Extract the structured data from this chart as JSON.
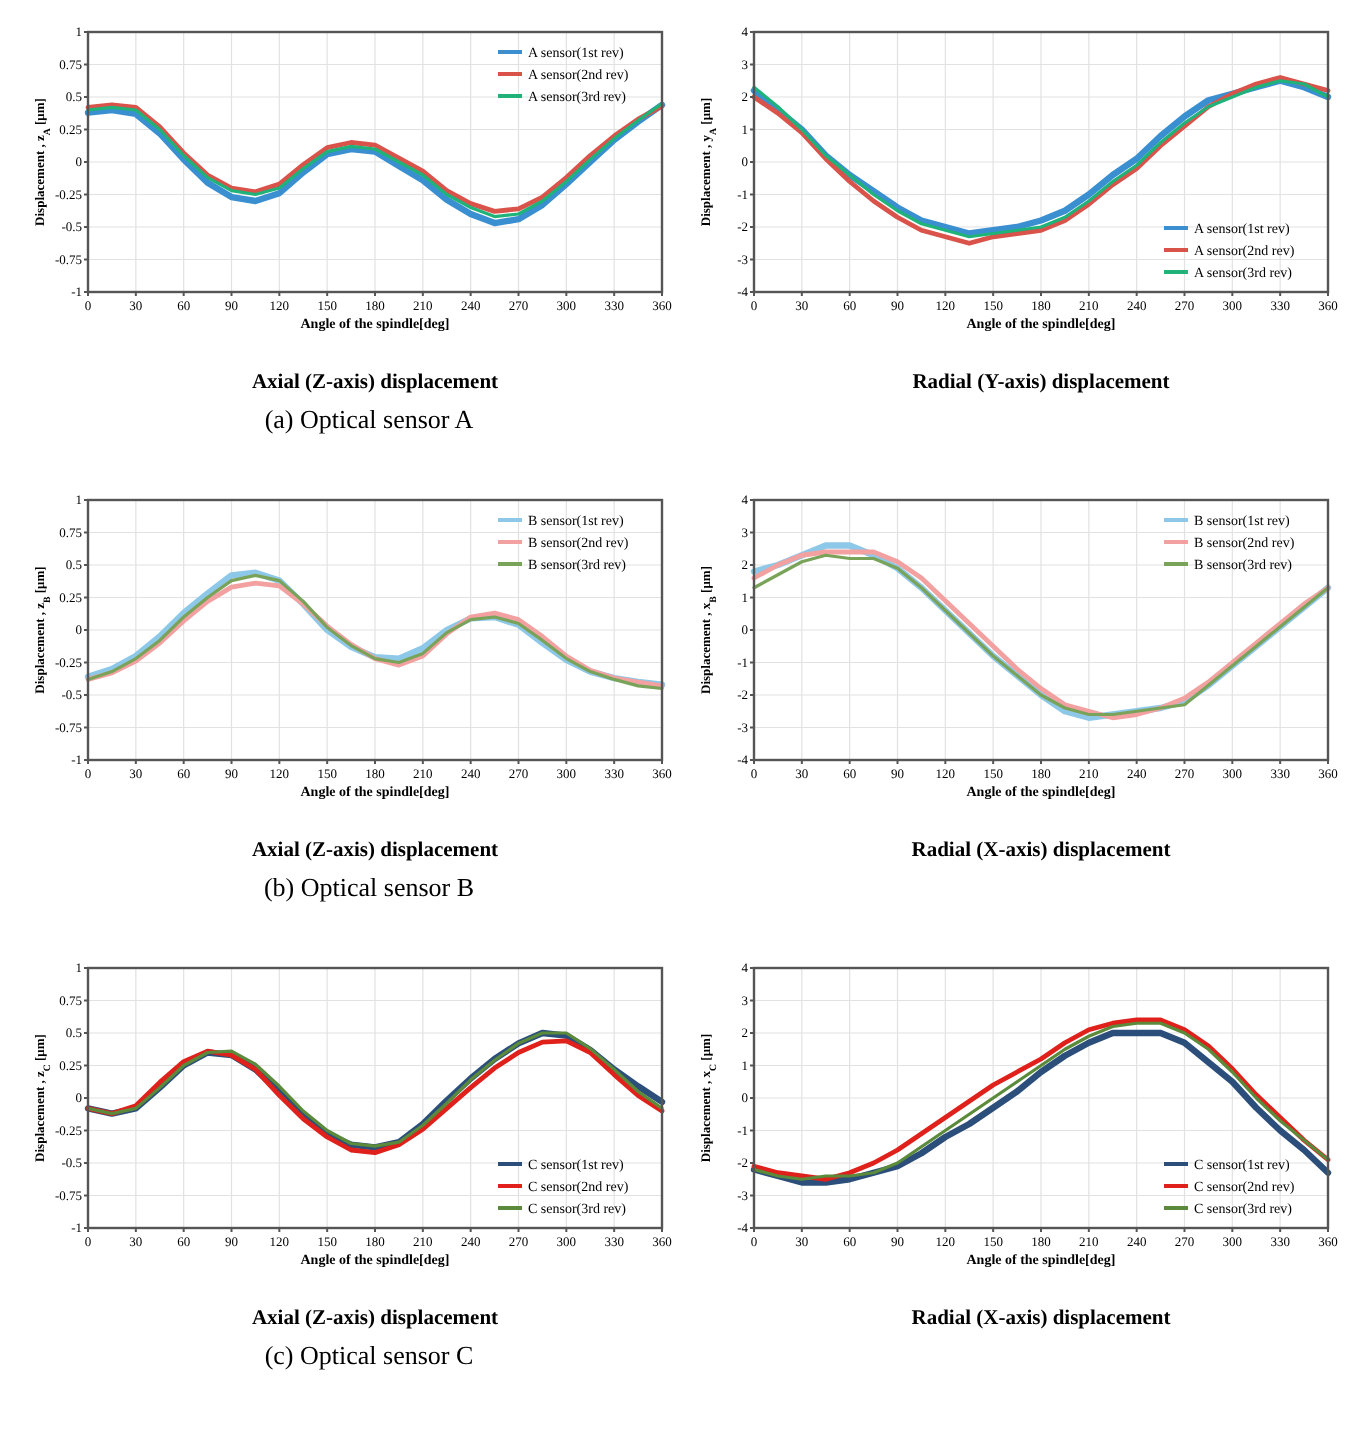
{
  "chart_data": [
    {
      "type": "line",
      "title": "Axial (Z-axis) displacement",
      "xlabel": "Angle of the spindle[deg]",
      "ylabel": "Displacement , z$_{A}$ [μm]",
      "xlim": [
        0,
        360
      ],
      "xticks": [
        0,
        30,
        60,
        90,
        120,
        150,
        180,
        210,
        240,
        270,
        300,
        330,
        360
      ],
      "ylim": [
        -1,
        1
      ],
      "yticks": [
        -1,
        -0.75,
        -0.5,
        -0.25,
        0,
        0.25,
        0.5,
        0.75,
        1
      ],
      "grid": true,
      "legend": "top right",
      "x": [
        0,
        15,
        30,
        45,
        60,
        75,
        90,
        105,
        120,
        135,
        150,
        165,
        180,
        195,
        210,
        225,
        240,
        255,
        270,
        285,
        300,
        315,
        330,
        345,
        360
      ],
      "series": [
        {
          "name": "A sensor(1st rev)",
          "color": "#3a8fd0",
          "values": [
            0.38,
            0.4,
            0.37,
            0.22,
            0.02,
            -0.16,
            -0.27,
            -0.3,
            -0.24,
            -0.08,
            0.06,
            0.1,
            0.08,
            -0.03,
            -0.14,
            -0.29,
            -0.4,
            -0.47,
            -0.44,
            -0.33,
            -0.17,
            0.0,
            0.17,
            0.31,
            0.44
          ]
        },
        {
          "name": "A sensor(2nd rev)",
          "color": "#d9534a",
          "values": [
            0.42,
            0.44,
            0.42,
            0.27,
            0.07,
            -0.1,
            -0.2,
            -0.23,
            -0.17,
            -0.02,
            0.11,
            0.15,
            0.13,
            0.03,
            -0.07,
            -0.22,
            -0.32,
            -0.38,
            -0.36,
            -0.27,
            -0.12,
            0.05,
            0.2,
            0.33,
            0.43
          ]
        },
        {
          "name": "A sensor(3rd rev)",
          "color": "#1fb37a",
          "values": [
            0.4,
            0.42,
            0.4,
            0.25,
            0.05,
            -0.12,
            -0.22,
            -0.25,
            -0.2,
            -0.05,
            0.08,
            0.12,
            0.1,
            0.0,
            -0.1,
            -0.25,
            -0.35,
            -0.42,
            -0.4,
            -0.3,
            -0.15,
            0.02,
            0.18,
            0.32,
            0.45
          ]
        }
      ]
    },
    {
      "type": "line",
      "title": "Radial (Y-axis) displacement",
      "xlabel": "Angle of the spindle[deg]",
      "ylabel": "Displacement , y$_{A}$ [μm]",
      "xlim": [
        0,
        360
      ],
      "xticks": [
        0,
        30,
        60,
        90,
        120,
        150,
        180,
        210,
        240,
        270,
        300,
        330,
        360
      ],
      "ylim": [
        -4,
        4
      ],
      "yticks": [
        -4,
        -3,
        -2,
        -1,
        0,
        1,
        2,
        3,
        4
      ],
      "grid": true,
      "legend": "bottom right",
      "annotations": [
        "(a) Optical sensor A"
      ],
      "x": [
        0,
        15,
        30,
        45,
        60,
        75,
        90,
        105,
        120,
        135,
        150,
        165,
        180,
        195,
        210,
        225,
        240,
        255,
        270,
        285,
        300,
        315,
        330,
        345,
        360
      ],
      "series": [
        {
          "name": "A sensor(1st rev)",
          "color": "#3a8fd0",
          "values": [
            2.2,
            1.6,
            1.0,
            0.2,
            -0.4,
            -0.9,
            -1.4,
            -1.8,
            -2.0,
            -2.2,
            -2.1,
            -2.0,
            -1.8,
            -1.5,
            -1.0,
            -0.4,
            0.1,
            0.8,
            1.4,
            1.9,
            2.1,
            2.3,
            2.5,
            2.3,
            2.0
          ]
        },
        {
          "name": "A sensor(2nd rev)",
          "color": "#d9534a",
          "values": [
            2.0,
            1.5,
            0.9,
            0.1,
            -0.6,
            -1.2,
            -1.7,
            -2.1,
            -2.3,
            -2.5,
            -2.3,
            -2.2,
            -2.1,
            -1.8,
            -1.3,
            -0.7,
            -0.2,
            0.5,
            1.1,
            1.7,
            2.1,
            2.4,
            2.6,
            2.4,
            2.2
          ]
        },
        {
          "name": "A sensor(3rd rev)",
          "color": "#1fb37a",
          "values": [
            2.3,
            1.7,
            1.0,
            0.2,
            -0.4,
            -1.0,
            -1.5,
            -1.9,
            -2.1,
            -2.3,
            -2.2,
            -2.1,
            -2.0,
            -1.7,
            -1.2,
            -0.6,
            -0.1,
            0.6,
            1.2,
            1.7,
            2.0,
            2.3,
            2.5,
            2.4,
            2.0
          ]
        }
      ]
    },
    {
      "type": "line",
      "title": "Axial (Z-axis) displacement",
      "xlabel": "Angle of the spindle[deg]",
      "ylabel": "Displacement , z$_{B}$ [μm]",
      "xlim": [
        0,
        360
      ],
      "xticks": [
        0,
        30,
        60,
        90,
        120,
        150,
        180,
        210,
        240,
        270,
        300,
        330,
        360
      ],
      "ylim": [
        -1,
        1
      ],
      "yticks": [
        -1,
        -0.75,
        -0.5,
        -0.25,
        0,
        0.25,
        0.5,
        0.75,
        1
      ],
      "grid": true,
      "legend": "top right",
      "x": [
        0,
        15,
        30,
        45,
        60,
        75,
        90,
        105,
        120,
        135,
        150,
        165,
        180,
        195,
        210,
        225,
        240,
        255,
        270,
        285,
        300,
        315,
        330,
        345,
        360
      ],
      "series": [
        {
          "name": "B sensor(1st rev)",
          "color": "#8ec8e8",
          "values": [
            -0.36,
            -0.3,
            -0.2,
            -0.05,
            0.13,
            0.28,
            0.42,
            0.44,
            0.38,
            0.2,
            0.0,
            -0.13,
            -0.21,
            -0.22,
            -0.14,
            0.0,
            0.09,
            0.1,
            0.04,
            -0.1,
            -0.23,
            -0.32,
            -0.37,
            -0.4,
            -0.42
          ]
        },
        {
          "name": "B sensor(2nd rev)",
          "color": "#f2a0a0",
          "values": [
            -0.38,
            -0.33,
            -0.24,
            -0.1,
            0.07,
            0.22,
            0.33,
            0.36,
            0.34,
            0.2,
            0.03,
            -0.11,
            -0.22,
            -0.27,
            -0.2,
            -0.03,
            0.1,
            0.13,
            0.08,
            -0.05,
            -0.2,
            -0.31,
            -0.37,
            -0.4,
            -0.43
          ]
        },
        {
          "name": "B sensor(3rd rev)",
          "color": "#7aa35a",
          "values": [
            -0.38,
            -0.32,
            -0.22,
            -0.08,
            0.1,
            0.25,
            0.38,
            0.42,
            0.38,
            0.22,
            0.02,
            -0.12,
            -0.22,
            -0.25,
            -0.18,
            -0.02,
            0.08,
            0.1,
            0.05,
            -0.08,
            -0.22,
            -0.32,
            -0.38,
            -0.43,
            -0.45
          ]
        }
      ]
    },
    {
      "type": "line",
      "title": "Radial (X-axis) displacement",
      "xlabel": "Angle of the spindle[deg]",
      "ylabel": "Displacement , x$_{B}$ [μm]",
      "xlim": [
        0,
        360
      ],
      "xticks": [
        0,
        30,
        60,
        90,
        120,
        150,
        180,
        210,
        240,
        270,
        300,
        330,
        360
      ],
      "ylim": [
        -4,
        4
      ],
      "yticks": [
        -4,
        -3,
        -2,
        -1,
        0,
        1,
        2,
        3,
        4
      ],
      "grid": true,
      "legend": "top right",
      "annotations": [
        "(b) Optical sensor B"
      ],
      "x": [
        0,
        15,
        30,
        45,
        60,
        75,
        90,
        105,
        120,
        135,
        150,
        165,
        180,
        195,
        210,
        225,
        240,
        255,
        270,
        285,
        300,
        315,
        330,
        345,
        360
      ],
      "series": [
        {
          "name": "B sensor(1st rev)",
          "color": "#8ec8e8",
          "values": [
            1.8,
            2.0,
            2.3,
            2.6,
            2.6,
            2.3,
            1.9,
            1.3,
            0.6,
            -0.1,
            -0.8,
            -1.4,
            -2.0,
            -2.5,
            -2.7,
            -2.6,
            -2.5,
            -2.4,
            -2.2,
            -1.7,
            -1.1,
            -0.5,
            0.1,
            0.7,
            1.3
          ]
        },
        {
          "name": "B sensor(2nd rev)",
          "color": "#f2a0a0",
          "values": [
            1.6,
            2.0,
            2.3,
            2.4,
            2.4,
            2.4,
            2.1,
            1.6,
            0.9,
            0.2,
            -0.5,
            -1.2,
            -1.8,
            -2.3,
            -2.5,
            -2.7,
            -2.6,
            -2.4,
            -2.1,
            -1.6,
            -1.0,
            -0.4,
            0.2,
            0.8,
            1.3
          ]
        },
        {
          "name": "B sensor(3rd rev)",
          "color": "#7aa35a",
          "values": [
            1.3,
            1.7,
            2.1,
            2.3,
            2.2,
            2.2,
            1.9,
            1.3,
            0.6,
            -0.1,
            -0.8,
            -1.4,
            -2.0,
            -2.4,
            -2.6,
            -2.6,
            -2.5,
            -2.4,
            -2.3,
            -1.7,
            -1.1,
            -0.5,
            0.1,
            0.7,
            1.3
          ]
        }
      ]
    },
    {
      "type": "line",
      "title": "Axial (Z-axis) displacement",
      "xlabel": "Angle of the spindle[deg]",
      "ylabel": "Displacement , z$_{C}$ [μm]",
      "xlim": [
        0,
        360
      ],
      "xticks": [
        0,
        30,
        60,
        90,
        120,
        150,
        180,
        210,
        240,
        270,
        300,
        330,
        360
      ],
      "ylim": [
        -1,
        1
      ],
      "yticks": [
        -1,
        -0.75,
        -0.5,
        -0.25,
        0,
        0.25,
        0.5,
        0.75,
        1
      ],
      "grid": true,
      "legend": "bottom right",
      "x": [
        0,
        15,
        30,
        45,
        60,
        75,
        90,
        105,
        120,
        135,
        150,
        165,
        180,
        195,
        210,
        225,
        240,
        255,
        270,
        285,
        300,
        315,
        330,
        345,
        360
      ],
      "series": [
        {
          "name": "C sensor(1st rev)",
          "color": "#2b4f7a",
          "values": [
            -0.08,
            -0.12,
            -0.08,
            0.08,
            0.25,
            0.35,
            0.33,
            0.22,
            0.05,
            -0.14,
            -0.28,
            -0.36,
            -0.38,
            -0.34,
            -0.2,
            -0.02,
            0.15,
            0.3,
            0.42,
            0.5,
            0.48,
            0.37,
            0.22,
            0.09,
            -0.03
          ]
        },
        {
          "name": "C sensor(2nd rev)",
          "color": "#e0201b",
          "values": [
            -0.08,
            -0.12,
            -0.06,
            0.12,
            0.28,
            0.36,
            0.33,
            0.22,
            0.02,
            -0.16,
            -0.3,
            -0.4,
            -0.42,
            -0.36,
            -0.24,
            -0.08,
            0.08,
            0.23,
            0.35,
            0.43,
            0.44,
            0.35,
            0.18,
            0.02,
            -0.1
          ]
        },
        {
          "name": "C sensor(3rd rev)",
          "color": "#5a8a3a",
          "values": [
            -0.08,
            -0.12,
            -0.08,
            0.08,
            0.25,
            0.35,
            0.36,
            0.26,
            0.09,
            -0.1,
            -0.25,
            -0.35,
            -0.37,
            -0.34,
            -0.21,
            -0.04,
            0.14,
            0.29,
            0.42,
            0.5,
            0.5,
            0.38,
            0.22,
            0.05,
            -0.08
          ]
        }
      ]
    },
    {
      "type": "line",
      "title": "Radial (X-axis) displacement",
      "xlabel": "Angle of the spindle[deg]",
      "ylabel": "Displacement , x$_{C}$ [μm]",
      "xlim": [
        0,
        360
      ],
      "xticks": [
        0,
        30,
        60,
        90,
        120,
        150,
        180,
        210,
        240,
        270,
        300,
        330,
        360
      ],
      "ylim": [
        -4,
        4
      ],
      "yticks": [
        -4,
        -3,
        -2,
        -1,
        0,
        1,
        2,
        3,
        4
      ],
      "grid": true,
      "legend": "bottom right",
      "annotations": [
        "(c) Optical sensor C"
      ],
      "x": [
        0,
        15,
        30,
        45,
        60,
        75,
        90,
        105,
        120,
        135,
        150,
        165,
        180,
        195,
        210,
        225,
        240,
        255,
        270,
        285,
        300,
        315,
        330,
        345,
        360
      ],
      "series": [
        {
          "name": "C sensor(1st rev)",
          "color": "#2b4f7a",
          "values": [
            -2.2,
            -2.4,
            -2.6,
            -2.6,
            -2.5,
            -2.3,
            -2.1,
            -1.7,
            -1.2,
            -0.8,
            -0.3,
            0.2,
            0.8,
            1.3,
            1.7,
            2.0,
            2.0,
            2.0,
            1.7,
            1.1,
            0.5,
            -0.3,
            -1.0,
            -1.6,
            -2.3
          ]
        },
        {
          "name": "C sensor(2nd rev)",
          "color": "#e0201b",
          "values": [
            -2.1,
            -2.3,
            -2.4,
            -2.5,
            -2.3,
            -2.0,
            -1.6,
            -1.1,
            -0.6,
            -0.1,
            0.4,
            0.8,
            1.2,
            1.7,
            2.1,
            2.3,
            2.4,
            2.4,
            2.1,
            1.6,
            0.9,
            0.1,
            -0.6,
            -1.3,
            -1.9
          ]
        },
        {
          "name": "C sensor(3rd rev)",
          "color": "#5a8a3a",
          "values": [
            -2.2,
            -2.4,
            -2.5,
            -2.4,
            -2.4,
            -2.3,
            -2.0,
            -1.5,
            -1.0,
            -0.5,
            0.0,
            0.5,
            1.0,
            1.5,
            1.9,
            2.2,
            2.3,
            2.3,
            2.0,
            1.5,
            0.8,
            0.0,
            -0.7,
            -1.3,
            -1.9
          ]
        }
      ]
    }
  ]
}
